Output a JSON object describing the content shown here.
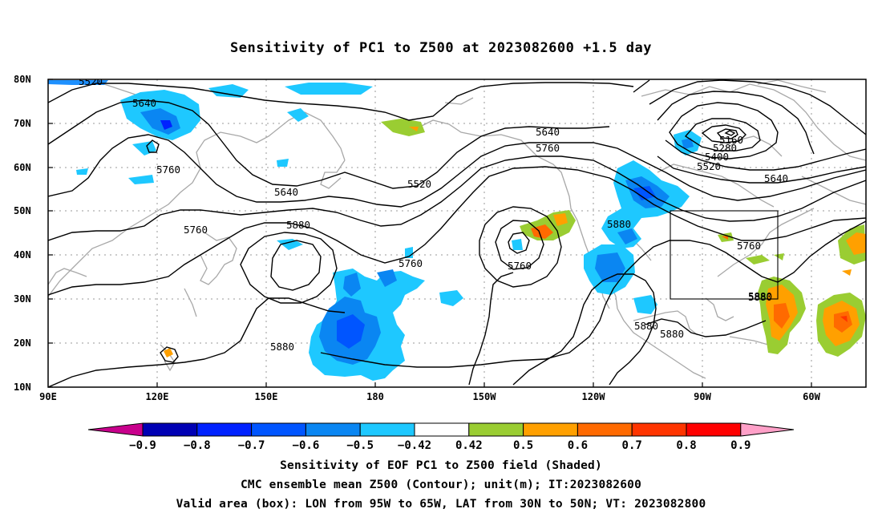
{
  "title": "Sensitivity of PC1 to Z500 at 2023082600 +1.5 day",
  "map": {
    "lat_labels": [
      "80N",
      "70N",
      "60N",
      "50N",
      "40N",
      "30N",
      "20N",
      "10N"
    ],
    "lon_labels": [
      "90E",
      "120E",
      "150E",
      "180",
      "150W",
      "120W",
      "90W",
      "60W"
    ],
    "contour_labels": [
      {
        "text": "5520",
        "pos": "nw-ridge"
      },
      {
        "text": "5640",
        "pos": "nw"
      },
      {
        "text": "5760",
        "pos": "kamchatka"
      },
      {
        "text": "5640",
        "pos": "japan-trough"
      },
      {
        "text": "5760",
        "pos": "asia"
      },
      {
        "text": "5880",
        "pos": "w-pacific-high"
      },
      {
        "text": "5520",
        "pos": "bering"
      },
      {
        "text": "5760",
        "pos": "central-pacific"
      },
      {
        "text": "5880",
        "pos": "sw-pacific"
      },
      {
        "text": "5640",
        "pos": "alaska"
      },
      {
        "text": "5760",
        "pos": "alaska-south"
      },
      {
        "text": "5760",
        "pos": "ne-pacific-low"
      },
      {
        "text": "5880",
        "pos": "e-pacific"
      },
      {
        "text": "5880",
        "pos": "western-us"
      },
      {
        "text": "5880",
        "pos": "mexico"
      },
      {
        "text": "5880",
        "pos": "caribbean"
      },
      {
        "text": "5160",
        "pos": "hudson-low"
      },
      {
        "text": "5280",
        "pos": "hudson-low"
      },
      {
        "text": "5400",
        "pos": "hudson-low"
      },
      {
        "text": "5520",
        "pos": "hudson-low"
      },
      {
        "text": "5640",
        "pos": "labrador"
      },
      {
        "text": "5760",
        "pos": "great-lakes"
      },
      {
        "text": "5880",
        "pos": "atlantic"
      }
    ],
    "valid_box": {
      "lon_from": "95W",
      "lon_to": "65W",
      "lat_from": "30N",
      "lat_to": "50N"
    }
  },
  "colorbar": {
    "labels": [
      "-0.9",
      "-0.8",
      "-0.7",
      "-0.6",
      "-0.5",
      "-0.42",
      "0.42",
      "0.5",
      "0.6",
      "0.7",
      "0.8",
      "0.9"
    ],
    "colors": [
      "#0000b4",
      "#0022ff",
      "#0055ff",
      "#0a86f2",
      "#1ec8ff",
      "#ffffff",
      "#9acd32",
      "#ffa000",
      "#ff6a00",
      "#ff3500",
      "#ff0000"
    ],
    "low_end_color": "#c8008c",
    "high_end_color": "#ffa0c8"
  },
  "caption": {
    "line1": "Sensitivity of EOF PC1 to Z500 field (Shaded)",
    "line2": "CMC ensemble mean Z500 (Contour); unit(m); IT:2023082600",
    "line3": "Valid area (box): LON from 95W to 65W, LAT from 30N to 50N; VT: 2023082800"
  }
}
